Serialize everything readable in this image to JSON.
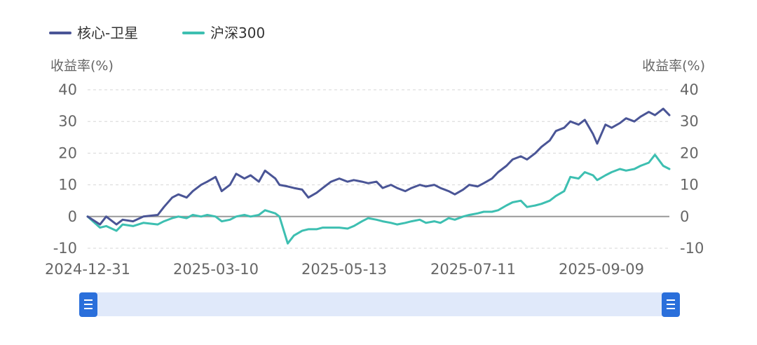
{
  "legend": {
    "items": [
      {
        "label": "核心-卫星",
        "color": "#4a5596"
      },
      {
        "label": "沪深300",
        "color": "#3dbfb1"
      }
    ]
  },
  "axes": {
    "left_title": "收益率(%)",
    "right_title": "收益率(%)"
  },
  "slider": {
    "track_color": "#e0e9fa",
    "handle_color": "#2a6fdb",
    "handle_icon": "drag-handle-icon",
    "range": [
      0,
      1
    ]
  },
  "chart_data": {
    "type": "line",
    "xlabel": "",
    "ylabel": "收益率(%)",
    "ylim": [
      -10,
      40
    ],
    "yticks": [
      40,
      30,
      20,
      10,
      0,
      -10
    ],
    "xticks": [
      "2024-12-31",
      "2025-03-10",
      "2025-05-13",
      "2025-07-11",
      "2025-09-09"
    ],
    "x_range": [
      "2024-12-31",
      "2025-10-09"
    ],
    "grid": true,
    "legend_position": "top-left",
    "series": [
      {
        "name": "核心-卫星",
        "color": "#4a5596",
        "points": [
          [
            "2024-12-31",
            0
          ],
          [
            "2025-01-06",
            -2.5
          ],
          [
            "2025-01-09",
            0
          ],
          [
            "2025-01-14",
            -2.5
          ],
          [
            "2025-01-17",
            -1
          ],
          [
            "2025-01-22",
            -1.5
          ],
          [
            "2025-01-27",
            0
          ],
          [
            "2025-02-03",
            0.5
          ],
          [
            "2025-02-06",
            3
          ],
          [
            "2025-02-10",
            6
          ],
          [
            "2025-02-13",
            7
          ],
          [
            "2025-02-17",
            6
          ],
          [
            "2025-02-20",
            8
          ],
          [
            "2025-02-24",
            10
          ],
          [
            "2025-02-27",
            11
          ],
          [
            "2025-03-03",
            12.5
          ],
          [
            "2025-03-06",
            8
          ],
          [
            "2025-03-10",
            10
          ],
          [
            "2025-03-13",
            13.5
          ],
          [
            "2025-03-17",
            12
          ],
          [
            "2025-03-20",
            13
          ],
          [
            "2025-03-24",
            11
          ],
          [
            "2025-03-27",
            14.5
          ],
          [
            "2025-04-01",
            12
          ],
          [
            "2025-04-03",
            10
          ],
          [
            "2025-04-07",
            9.5
          ],
          [
            "2025-04-10",
            9
          ],
          [
            "2025-04-14",
            8.5
          ],
          [
            "2025-04-17",
            6
          ],
          [
            "2025-04-21",
            7.5
          ],
          [
            "2025-04-24",
            9
          ],
          [
            "2025-04-28",
            11
          ],
          [
            "2025-05-02",
            12
          ],
          [
            "2025-05-06",
            11
          ],
          [
            "2025-05-09",
            11.5
          ],
          [
            "2025-05-13",
            11
          ],
          [
            "2025-05-16",
            10.5
          ],
          [
            "2025-05-20",
            11
          ],
          [
            "2025-05-23",
            9
          ],
          [
            "2025-05-27",
            10
          ],
          [
            "2025-05-30",
            9
          ],
          [
            "2025-06-03",
            8
          ],
          [
            "2025-06-06",
            9
          ],
          [
            "2025-06-10",
            10
          ],
          [
            "2025-06-13",
            9.5
          ],
          [
            "2025-06-17",
            10
          ],
          [
            "2025-06-20",
            9
          ],
          [
            "2025-06-24",
            8
          ],
          [
            "2025-06-27",
            7
          ],
          [
            "2025-07-01",
            8.5
          ],
          [
            "2025-07-04",
            10
          ],
          [
            "2025-07-08",
            9.5
          ],
          [
            "2025-07-11",
            10.5
          ],
          [
            "2025-07-15",
            12
          ],
          [
            "2025-07-18",
            14
          ],
          [
            "2025-07-22",
            16
          ],
          [
            "2025-07-25",
            18
          ],
          [
            "2025-07-29",
            19
          ],
          [
            "2025-08-01",
            18
          ],
          [
            "2025-08-05",
            20
          ],
          [
            "2025-08-08",
            22
          ],
          [
            "2025-08-12",
            24
          ],
          [
            "2025-08-15",
            27
          ],
          [
            "2025-08-19",
            28
          ],
          [
            "2025-08-22",
            30
          ],
          [
            "2025-08-26",
            29
          ],
          [
            "2025-08-29",
            30.5
          ],
          [
            "2025-09-02",
            26
          ],
          [
            "2025-09-04",
            23
          ],
          [
            "2025-09-08",
            29
          ],
          [
            "2025-09-11",
            28
          ],
          [
            "2025-09-15",
            29.5
          ],
          [
            "2025-09-18",
            31
          ],
          [
            "2025-09-22",
            30
          ],
          [
            "2025-09-25",
            31.5
          ],
          [
            "2025-09-29",
            33
          ],
          [
            "2025-10-02",
            32
          ],
          [
            "2025-10-06",
            34
          ],
          [
            "2025-10-09",
            32
          ]
        ]
      },
      {
        "name": "沪深300",
        "color": "#3dbfb1",
        "points": [
          [
            "2024-12-31",
            0
          ],
          [
            "2025-01-06",
            -3.5
          ],
          [
            "2025-01-09",
            -3
          ],
          [
            "2025-01-14",
            -4.5
          ],
          [
            "2025-01-17",
            -2.5
          ],
          [
            "2025-01-22",
            -3
          ],
          [
            "2025-01-27",
            -2
          ],
          [
            "2025-02-03",
            -2.5
          ],
          [
            "2025-02-06",
            -1.5
          ],
          [
            "2025-02-10",
            -0.5
          ],
          [
            "2025-02-13",
            0
          ],
          [
            "2025-02-17",
            -0.5
          ],
          [
            "2025-02-20",
            0.5
          ],
          [
            "2025-02-24",
            0
          ],
          [
            "2025-02-27",
            0.5
          ],
          [
            "2025-03-03",
            0
          ],
          [
            "2025-03-06",
            -1.5
          ],
          [
            "2025-03-10",
            -1
          ],
          [
            "2025-03-13",
            0
          ],
          [
            "2025-03-17",
            0.5
          ],
          [
            "2025-03-20",
            0
          ],
          [
            "2025-03-24",
            0.5
          ],
          [
            "2025-03-27",
            2
          ],
          [
            "2025-04-01",
            1
          ],
          [
            "2025-04-03",
            0
          ],
          [
            "2025-04-07",
            -8.5
          ],
          [
            "2025-04-10",
            -6
          ],
          [
            "2025-04-14",
            -4.5
          ],
          [
            "2025-04-17",
            -4
          ],
          [
            "2025-04-21",
            -4
          ],
          [
            "2025-04-24",
            -3.5
          ],
          [
            "2025-04-28",
            -3.5
          ],
          [
            "2025-05-02",
            -3.5
          ],
          [
            "2025-05-06",
            -3.8
          ],
          [
            "2025-05-09",
            -3
          ],
          [
            "2025-05-13",
            -1.5
          ],
          [
            "2025-05-16",
            -0.5
          ],
          [
            "2025-05-20",
            -1
          ],
          [
            "2025-05-23",
            -1.5
          ],
          [
            "2025-05-27",
            -2
          ],
          [
            "2025-05-30",
            -2.5
          ],
          [
            "2025-06-03",
            -2
          ],
          [
            "2025-06-06",
            -1.5
          ],
          [
            "2025-06-10",
            -1
          ],
          [
            "2025-06-13",
            -2
          ],
          [
            "2025-06-17",
            -1.5
          ],
          [
            "2025-06-20",
            -2
          ],
          [
            "2025-06-24",
            -0.5
          ],
          [
            "2025-06-27",
            -1
          ],
          [
            "2025-07-01",
            0
          ],
          [
            "2025-07-04",
            0.5
          ],
          [
            "2025-07-08",
            1
          ],
          [
            "2025-07-11",
            1.5
          ],
          [
            "2025-07-15",
            1.5
          ],
          [
            "2025-07-18",
            2
          ],
          [
            "2025-07-22",
            3.5
          ],
          [
            "2025-07-25",
            4.5
          ],
          [
            "2025-07-29",
            5
          ],
          [
            "2025-08-01",
            3
          ],
          [
            "2025-08-05",
            3.5
          ],
          [
            "2025-08-08",
            4
          ],
          [
            "2025-08-12",
            5
          ],
          [
            "2025-08-15",
            6.5
          ],
          [
            "2025-08-19",
            8
          ],
          [
            "2025-08-22",
            12.5
          ],
          [
            "2025-08-26",
            12
          ],
          [
            "2025-08-29",
            14
          ],
          [
            "2025-09-02",
            13
          ],
          [
            "2025-09-04",
            11.5
          ],
          [
            "2025-09-08",
            13
          ],
          [
            "2025-09-11",
            14
          ],
          [
            "2025-09-15",
            15
          ],
          [
            "2025-09-18",
            14.5
          ],
          [
            "2025-09-22",
            15
          ],
          [
            "2025-09-25",
            16
          ],
          [
            "2025-09-29",
            17
          ],
          [
            "2025-10-02",
            19.5
          ],
          [
            "2025-10-06",
            16
          ],
          [
            "2025-10-09",
            15
          ]
        ]
      }
    ]
  }
}
